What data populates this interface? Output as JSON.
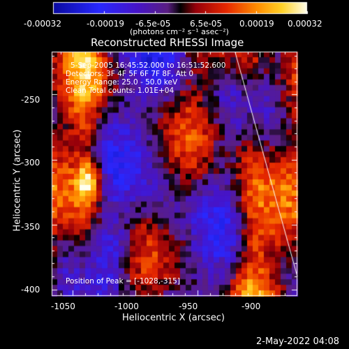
{
  "colorbar": {
    "tick_labels": [
      "-0.00032",
      "-0.00019",
      "-6.5e-05",
      "6.5e-05",
      "0.00019",
      "0.00032"
    ],
    "unit_label": "(photons cm⁻² s⁻¹ asec⁻²)"
  },
  "plot": {
    "title": "Reconstructed RHESSI Image",
    "info_lines": [
      "5-Sep-2005 16:45:52.000 to 16:51:52.600",
      "Detectors: 3F 4F 5F 6F 7F 8F, Att 0",
      "Energy Range: 25.0 - 50.0 keV",
      "Clean     Total counts: 1.01E+04"
    ],
    "peak_label": "Position of Peak = [-1028,-315]",
    "x_axis_label": "Heliocentric X (arcsec)",
    "y_axis_label": "Heliocentric Y (arcsec)",
    "x_ticks": [
      "-1050",
      "-1000",
      "-950",
      "-900"
    ],
    "y_ticks": [
      "-250",
      "-300",
      "-350",
      "-400"
    ]
  },
  "footer": {
    "timestamp": "2-May-2022 04:08"
  },
  "chart_data": {
    "type": "heatmap",
    "title": "Reconstructed RHESSI Image",
    "xlabel": "Heliocentric X (arcsec)",
    "ylabel": "Heliocentric Y (arcsec)",
    "xlim": [
      -1067,
      -870
    ],
    "ylim": [
      -405,
      -217
    ],
    "x_ticks": [
      -1050,
      -1000,
      -950,
      -900
    ],
    "y_ticks": [
      -250,
      -300,
      -350,
      -400
    ],
    "color_range": [
      -0.00032,
      0.00032
    ],
    "colorbar_ticks": [
      -0.00032,
      -0.00019,
      -6.5e-05,
      6.5e-05,
      0.00019,
      0.00032
    ],
    "colorbar_unit": "(photons cm⁻² s⁻¹ asec⁻²)",
    "peak_position": [
      -1028,
      -315
    ],
    "limb_line": {
      "x": [
        -920,
        -870
      ],
      "y": [
        -217,
        -390
      ]
    },
    "colormap": "rhessi-bluered"
  }
}
